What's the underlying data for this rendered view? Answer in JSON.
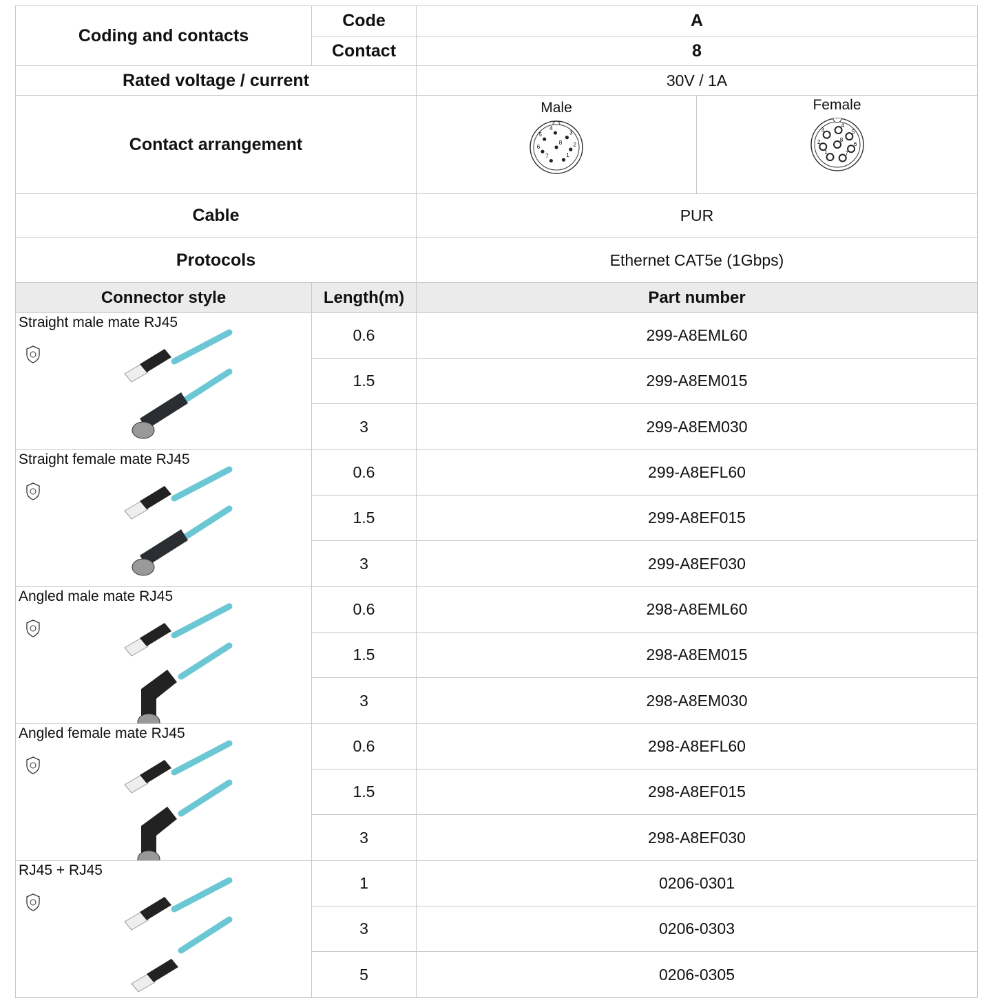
{
  "spec": {
    "coding_and_contacts": "Coding and contacts",
    "code_label": "Code",
    "code": "A",
    "contact_label": "Contact",
    "contact": "8",
    "rated_label": "Rated voltage / current",
    "rated": "30V / 1A",
    "arrangement_label": "Contact arrangement",
    "male_label": "Male",
    "female_label": "Female",
    "male_pins": [
      "1",
      "2",
      "3",
      "4",
      "5",
      "6",
      "7",
      "8"
    ],
    "female_pins": [
      "1",
      "2",
      "3",
      "4",
      "5",
      "6",
      "7",
      "8"
    ],
    "cable_label": "Cable",
    "cable": "PUR",
    "protocols_label": "Protocols",
    "protocols": "Ethernet CAT5e (1Gbps)"
  },
  "table": {
    "headers": [
      "Connector style",
      "Length(m)",
      "Part number"
    ],
    "groups": [
      {
        "style": "Straight male mate RJ45",
        "rows": [
          [
            "0.6",
            "299-A8EML60"
          ],
          [
            "1.5",
            "299-A8EM015"
          ],
          [
            "3",
            "299-A8EM030"
          ]
        ]
      },
      {
        "style": "Straight female mate RJ45",
        "rows": [
          [
            "0.6",
            "299-A8EFL60"
          ],
          [
            "1.5",
            "299-A8EF015"
          ],
          [
            "3",
            "299-A8EF030"
          ]
        ]
      },
      {
        "style": "Angled male mate RJ45",
        "rows": [
          [
            "0.6",
            "298-A8EML60"
          ],
          [
            "1.5",
            "298-A8EM015"
          ],
          [
            "3",
            "298-A8EM030"
          ]
        ]
      },
      {
        "style": "Angled female mate RJ45",
        "rows": [
          [
            "0.6",
            "298-A8EFL60"
          ],
          [
            "1.5",
            "298-A8EF015"
          ],
          [
            "3",
            "298-A8EF030"
          ]
        ]
      },
      {
        "style": "RJ45 + RJ45",
        "rows": [
          [
            "1",
            "0206-0301"
          ],
          [
            "3",
            "0206-0303"
          ],
          [
            "5",
            "0206-0305"
          ]
        ]
      }
    ]
  }
}
